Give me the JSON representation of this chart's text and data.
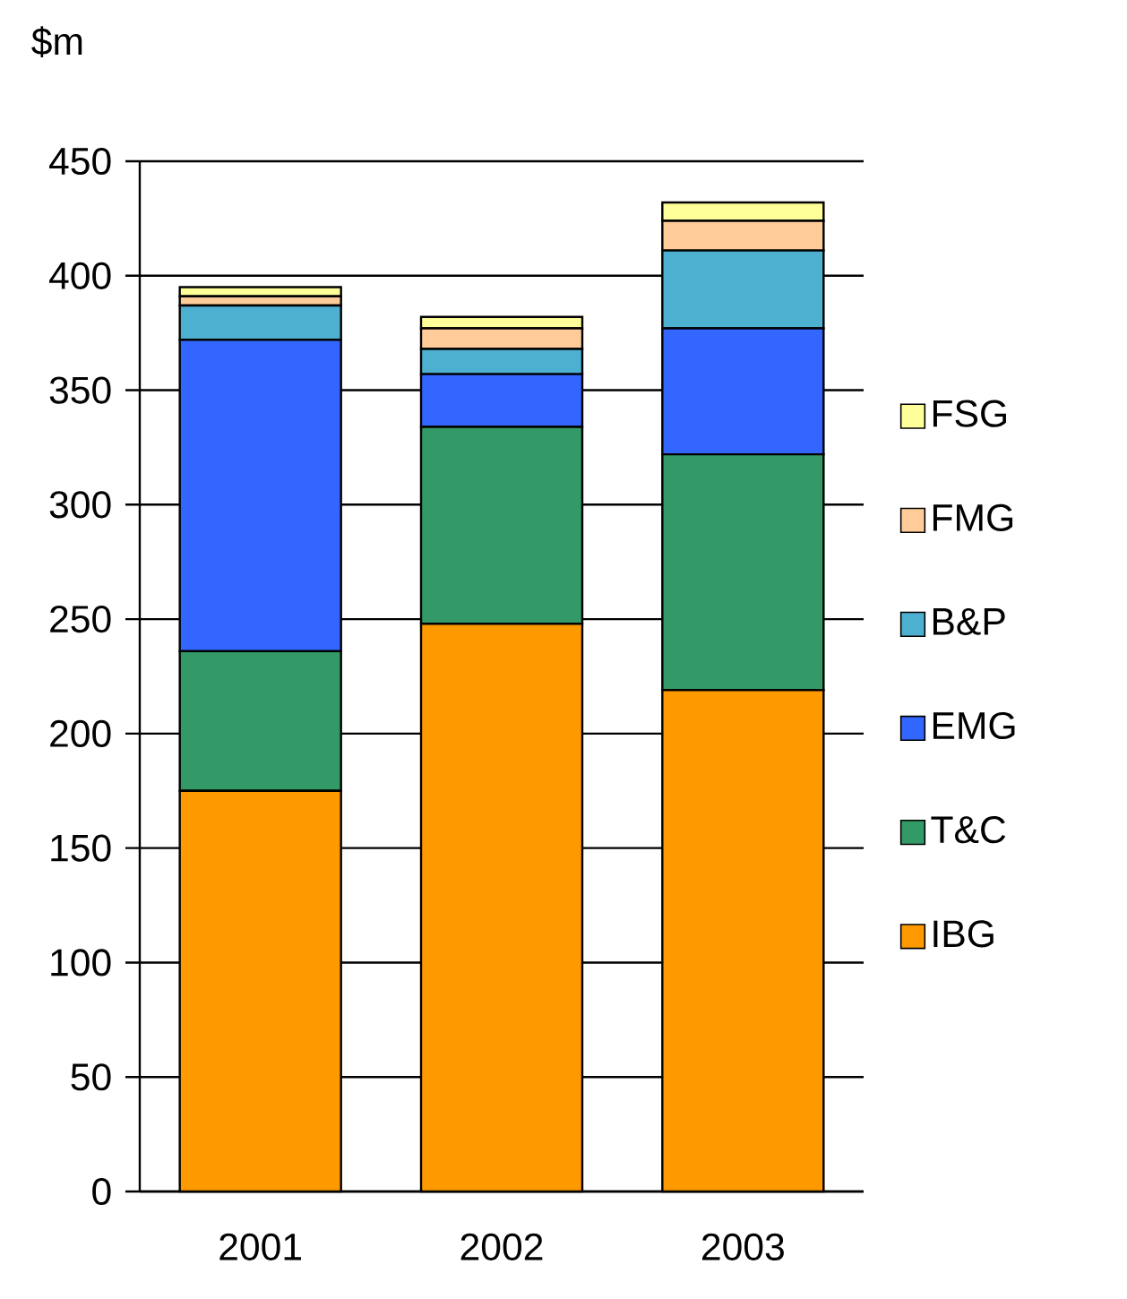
{
  "chart_data": {
    "type": "bar",
    "stacked": true,
    "ylabel": "$m",
    "categories": [
      "2001",
      "2002",
      "2003"
    ],
    "series": [
      {
        "name": "IBG",
        "color": "#ff9900",
        "values": [
          175,
          248,
          219
        ]
      },
      {
        "name": "T&C",
        "color": "#339966",
        "values": [
          61,
          86,
          103
        ]
      },
      {
        "name": "EMG",
        "color": "#3366ff",
        "values": [
          136,
          23,
          55
        ]
      },
      {
        "name": "B&P",
        "color": "#4eb0d0",
        "values": [
          15,
          11,
          34
        ]
      },
      {
        "name": "FMG",
        "color": "#ffcc99",
        "values": [
          4,
          9,
          13
        ]
      },
      {
        "name": "FSG",
        "color": "#ffff99",
        "values": [
          4,
          5,
          8
        ]
      }
    ],
    "ylim": [
      0,
      450
    ],
    "yticks": [
      0,
      50,
      100,
      150,
      200,
      250,
      300,
      350,
      400,
      450
    ],
    "grid": "y",
    "legend": "right"
  }
}
